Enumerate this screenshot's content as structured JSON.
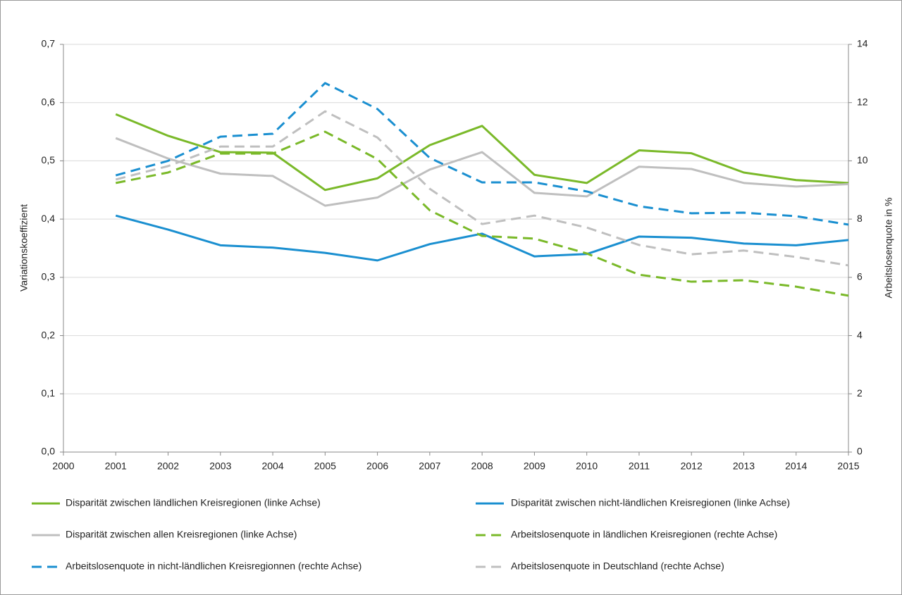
{
  "chart_data": {
    "type": "line",
    "x": [
      2001,
      2002,
      2003,
      2004,
      2005,
      2006,
      2007,
      2008,
      2009,
      2010,
      2011,
      2012,
      2013,
      2014,
      2015
    ],
    "xlim": [
      2000,
      2015
    ],
    "xticks": [
      2000,
      2001,
      2002,
      2003,
      2004,
      2005,
      2006,
      2007,
      2008,
      2009,
      2010,
      2011,
      2012,
      2013,
      2014,
      2015
    ],
    "ylabel": "Variationskoeffizient",
    "y2label": "Arbeitslosenquote in %",
    "ylim": [
      0,
      0.7
    ],
    "yticks": [
      {
        "value": 0,
        "label": "0,0"
      },
      {
        "value": 0.1,
        "label": "0,1"
      },
      {
        "value": 0.2,
        "label": "0,2"
      },
      {
        "value": 0.3,
        "label": "0,3"
      },
      {
        "value": 0.4,
        "label": "0,4"
      },
      {
        "value": 0.5,
        "label": "0,5"
      },
      {
        "value": 0.6,
        "label": "0,6"
      },
      {
        "value": 0.7,
        "label": "0,7"
      }
    ],
    "y2lim": [
      0,
      14
    ],
    "y2ticks": [
      0,
      2,
      4,
      6,
      8,
      10,
      12,
      14
    ],
    "grid": true,
    "legend": "bottom",
    "series": [
      {
        "name": "Disparität zwischen ländlichen Kreisregionen (linke Achse)",
        "color": "#7ab929",
        "dashed": false,
        "values": [
          0.58,
          0.543,
          0.515,
          0.514,
          0.45,
          0.47,
          0.527,
          0.56,
          0.476,
          0.462,
          0.518,
          0.513,
          0.48,
          0.467,
          0.462
        ]
      },
      {
        "name": "Disparität zwischen nicht-ländlichen Kreisregionen (linke Achse)",
        "color": "#1a8fd0",
        "dashed": false,
        "values": [
          0.406,
          0.382,
          0.355,
          0.351,
          0.342,
          0.329,
          0.357,
          0.375,
          0.336,
          0.34,
          0.37,
          0.368,
          0.358,
          0.355,
          0.364
        ]
      },
      {
        "name": "Disparität zwischen allen Kreisregionen (linke Achse)",
        "color": "#bfbfbf",
        "dashed": false,
        "values": [
          0.539,
          0.504,
          0.478,
          0.474,
          0.423,
          0.437,
          0.485,
          0.515,
          0.445,
          0.439,
          0.49,
          0.486,
          0.462,
          0.456,
          0.46
        ]
      },
      {
        "name": "Arbeitslosenquote in ländlichen Kreisregionen (rechte Achse)",
        "color": "#7ab929",
        "dashed": true,
        "axis": "y2",
        "values": [
          9.24,
          9.6,
          10.25,
          10.25,
          11.0,
          10.06,
          8.3,
          7.42,
          7.33,
          6.82,
          6.09,
          5.85,
          5.9,
          5.68,
          5.37
        ]
      },
      {
        "name": "Arbeitslosenquote in nicht-ländlichen Kreisregionnen (rechte Achse)",
        "color": "#1a8fd0",
        "dashed": true,
        "axis": "y2",
        "values": [
          9.5,
          10.0,
          10.83,
          10.93,
          12.67,
          11.78,
          10.1,
          9.26,
          9.26,
          8.95,
          8.44,
          8.2,
          8.22,
          8.1,
          7.81
        ]
      },
      {
        "name": "Arbeitslosenquote in Deutschland (rechte Achse)",
        "color": "#bfbfbf",
        "dashed": true,
        "axis": "y2",
        "values": [
          9.36,
          9.82,
          10.49,
          10.49,
          11.7,
          10.8,
          9.04,
          7.83,
          8.12,
          7.71,
          7.11,
          6.79,
          6.92,
          6.7,
          6.41
        ]
      }
    ]
  }
}
